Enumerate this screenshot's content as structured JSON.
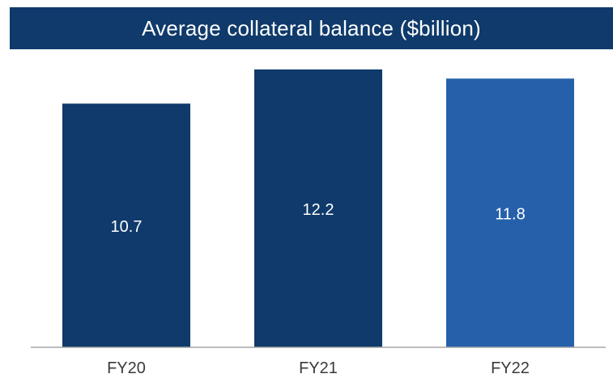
{
  "chart_data": {
    "type": "bar",
    "title": "Average collateral balance ($billion)",
    "categories": [
      "FY20",
      "FY21",
      "FY22"
    ],
    "values": [
      10.7,
      12.2,
      11.8
    ],
    "value_labels": [
      "10.7",
      "12.2",
      "11.8"
    ],
    "bar_colors": [
      "#0f3a6b",
      "#0f3a6b",
      "#2660ab"
    ],
    "title_bar_color": "#0f3a6b",
    "xlabel": "",
    "ylabel": "",
    "ylim": [
      0,
      12.2
    ],
    "grid": false,
    "legend": "none"
  }
}
